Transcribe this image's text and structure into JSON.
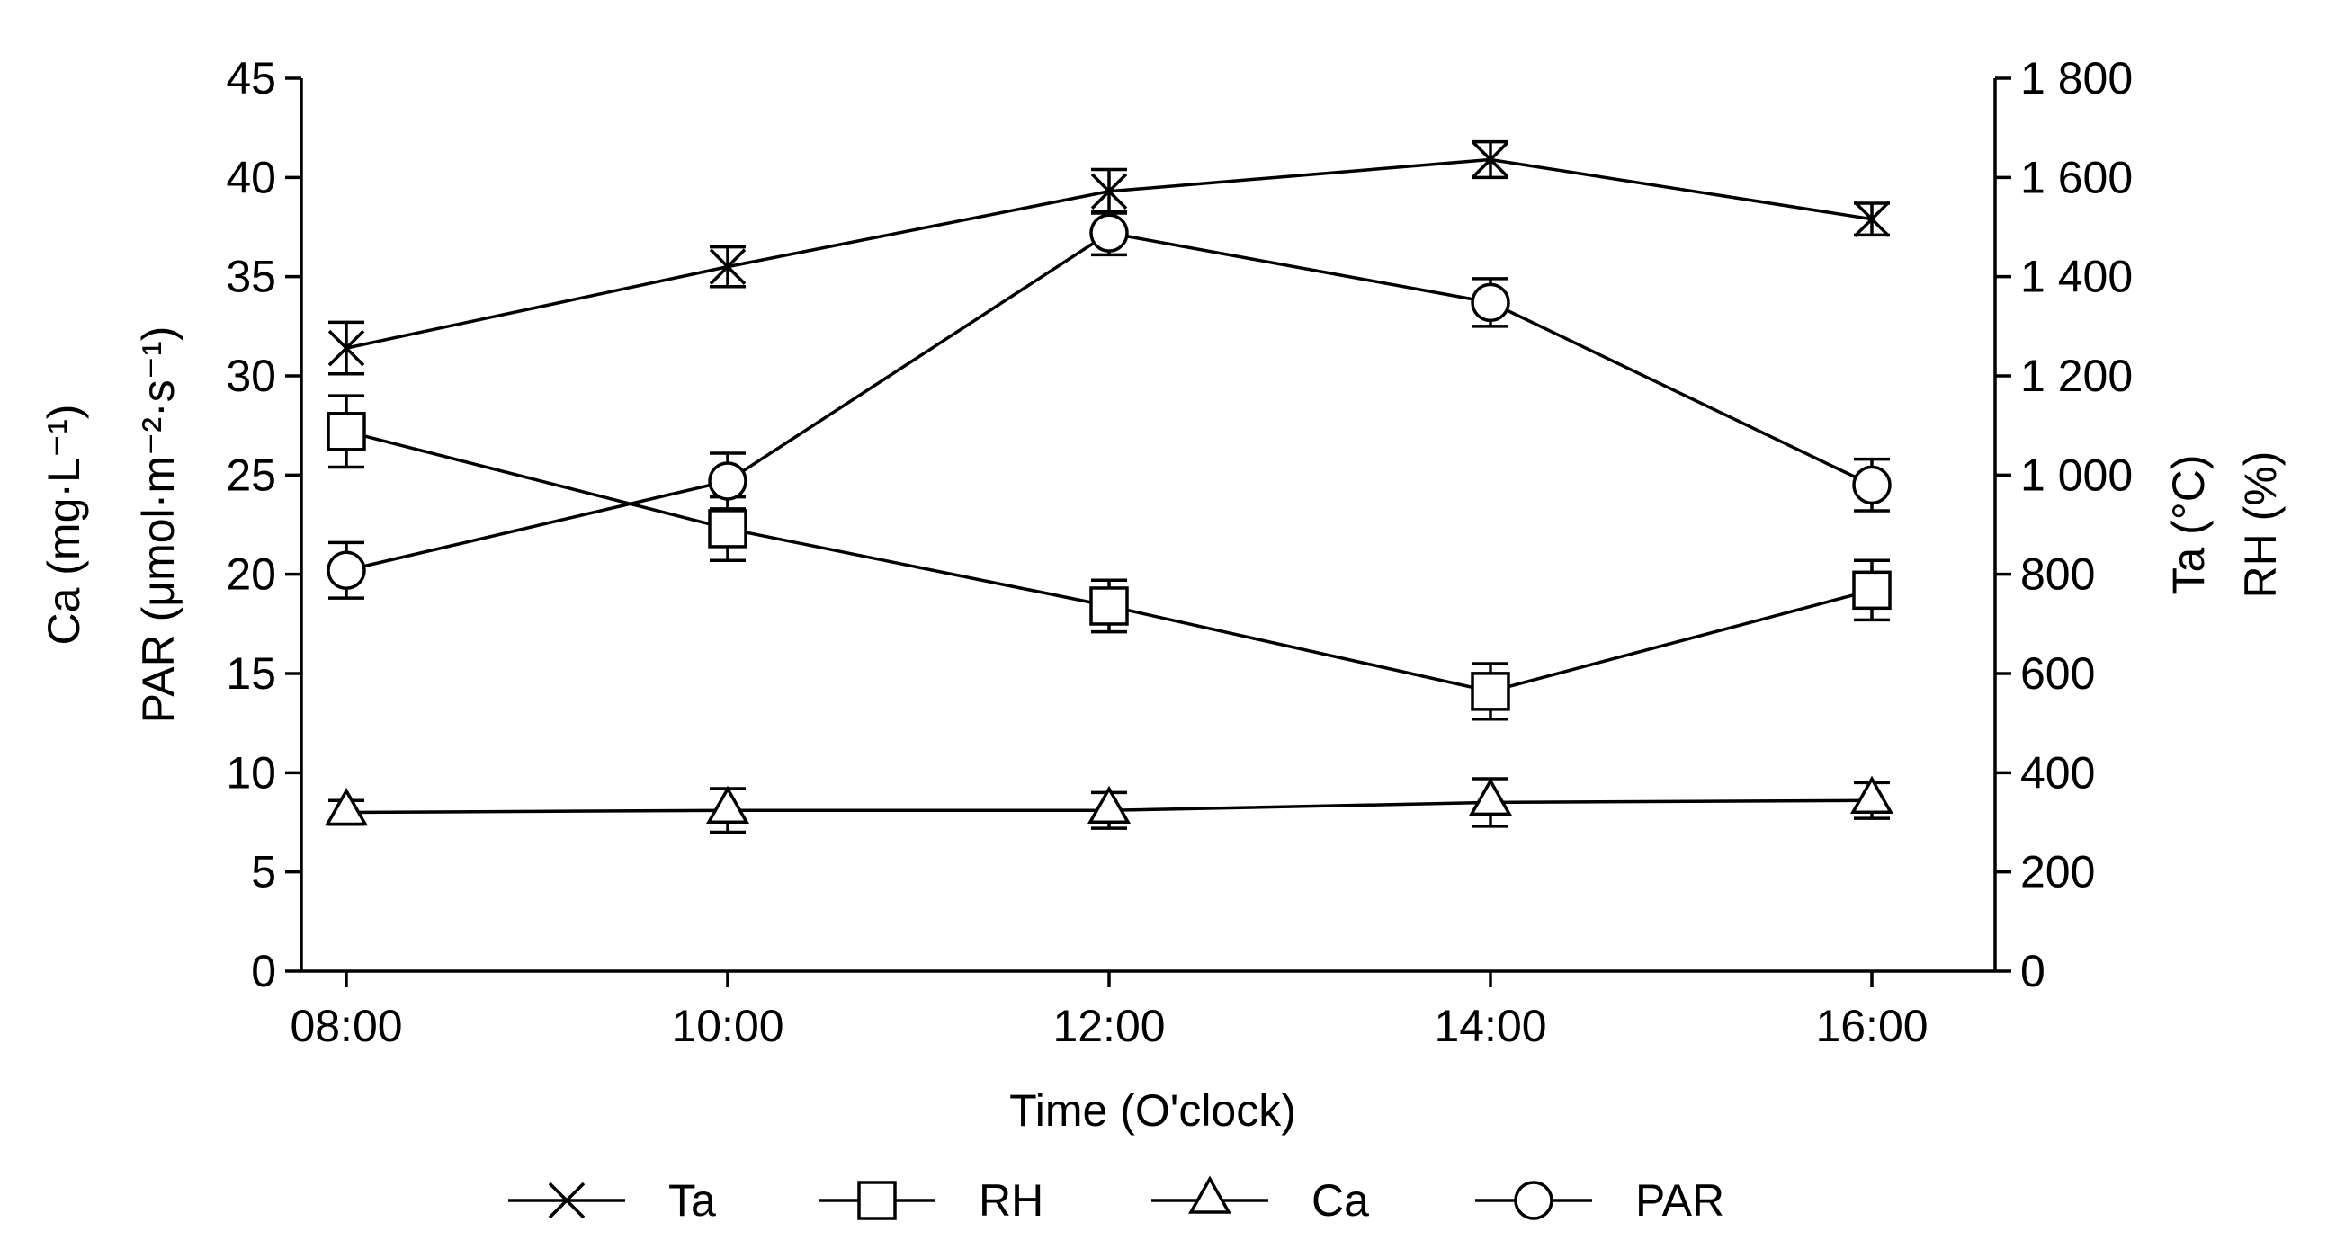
{
  "chart_data": {
    "type": "line",
    "x_labels": [
      "08:00",
      "10:00",
      "12:00",
      "14:00",
      "16:00"
    ],
    "xlabel": "Time (O'clock)",
    "left_axis": {
      "label_line1": "Ca (mg·L⁻¹)",
      "label_line2": "PAR (μmol·m⁻²·s⁻¹)",
      "range": [
        0,
        45
      ],
      "ticks": [
        0,
        5,
        10,
        15,
        20,
        25,
        30,
        35,
        40,
        45
      ],
      "tick_labels": [
        "0",
        "5",
        "10",
        "15",
        "20",
        "25",
        "30",
        "35",
        "40",
        "45"
      ]
    },
    "right_axis": {
      "label_line1": "Ta (°C)",
      "label_line2": "RH (%)",
      "range": [
        0,
        1800
      ],
      "ticks": [
        0,
        200,
        400,
        600,
        800,
        1000,
        1200,
        1400,
        1600,
        1800
      ],
      "tick_labels": [
        "0",
        "200",
        "400",
        "600",
        "800",
        "1 000",
        "1 200",
        "1 400",
        "1 600",
        "1 800"
      ]
    },
    "series": [
      {
        "name": "Ta",
        "marker": "x-cross",
        "axis": "left",
        "values": [
          31.4,
          35.5,
          39.3,
          40.9,
          37.9
        ],
        "errors": [
          1.3,
          1.0,
          1.1,
          0.9,
          0.8
        ]
      },
      {
        "name": "RH",
        "marker": "square",
        "axis": "left",
        "values": [
          27.2,
          22.3,
          18.4,
          14.1,
          19.2
        ],
        "errors": [
          1.8,
          1.6,
          1.3,
          1.4,
          1.5
        ]
      },
      {
        "name": "Ca",
        "marker": "triangle",
        "axis": "left",
        "values": [
          8.0,
          8.1,
          8.1,
          8.5,
          8.6
        ],
        "errors": [
          0.6,
          1.1,
          0.9,
          1.2,
          0.9
        ]
      },
      {
        "name": "PAR",
        "marker": "circle",
        "axis": "left",
        "values": [
          20.2,
          24.7,
          37.2,
          33.7,
          24.5
        ],
        "errors": [
          1.4,
          1.4,
          1.1,
          1.2,
          1.3
        ]
      }
    ],
    "grid": false,
    "legend_position": "bottom"
  }
}
